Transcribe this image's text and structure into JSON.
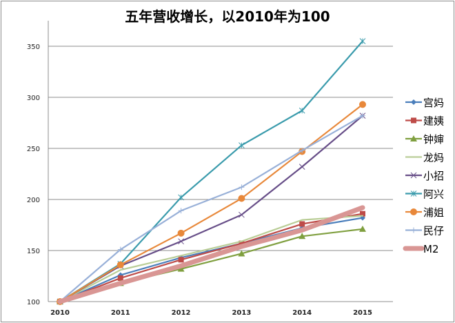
{
  "chart_data": {
    "type": "line",
    "title": "五年营收增长，以2010年为100",
    "xlabel": "",
    "ylabel": "",
    "categories": [
      "2010",
      "2011",
      "2012",
      "2013",
      "2014",
      "2015"
    ],
    "ylim": [
      100,
      375
    ],
    "yticks": [
      100,
      150,
      200,
      250,
      300,
      350
    ],
    "grid": true,
    "legend_position": "right",
    "series": [
      {
        "name": "宫妈",
        "color": "#4a7ebb",
        "marker": "diamond",
        "values": [
          100,
          126,
          143,
          157,
          172,
          182
        ]
      },
      {
        "name": "建姨",
        "color": "#be4b48",
        "marker": "square",
        "values": [
          100,
          123,
          141,
          157,
          176,
          186
        ]
      },
      {
        "name": "钟婶",
        "color": "#7f9f3f",
        "marker": "triangle",
        "values": [
          100,
          118,
          132,
          147,
          164,
          171
        ]
      },
      {
        "name": "龙妈",
        "color": "#b9cd96",
        "marker": "none",
        "values": [
          100,
          131,
          145,
          159,
          180,
          184
        ]
      },
      {
        "name": "小招",
        "color": "#674e88",
        "marker": "x",
        "values": [
          100,
          135,
          159,
          185,
          232,
          282
        ]
      },
      {
        "name": "阿兴",
        "color": "#3a9bac",
        "marker": "star",
        "values": [
          100,
          137,
          202,
          253,
          287,
          355
        ]
      },
      {
        "name": "浦姐",
        "color": "#e8883a",
        "marker": "circle",
        "values": [
          100,
          136,
          167,
          201,
          247,
          293
        ]
      },
      {
        "name": "民仔",
        "color": "#98b0d8",
        "marker": "plus",
        "values": [
          100,
          151,
          189,
          212,
          248,
          282
        ]
      },
      {
        "name": "M2",
        "color": "#d99694",
        "marker": "none",
        "thick": true,
        "values": [
          100,
          118,
          135,
          154,
          170,
          192
        ]
      }
    ]
  }
}
